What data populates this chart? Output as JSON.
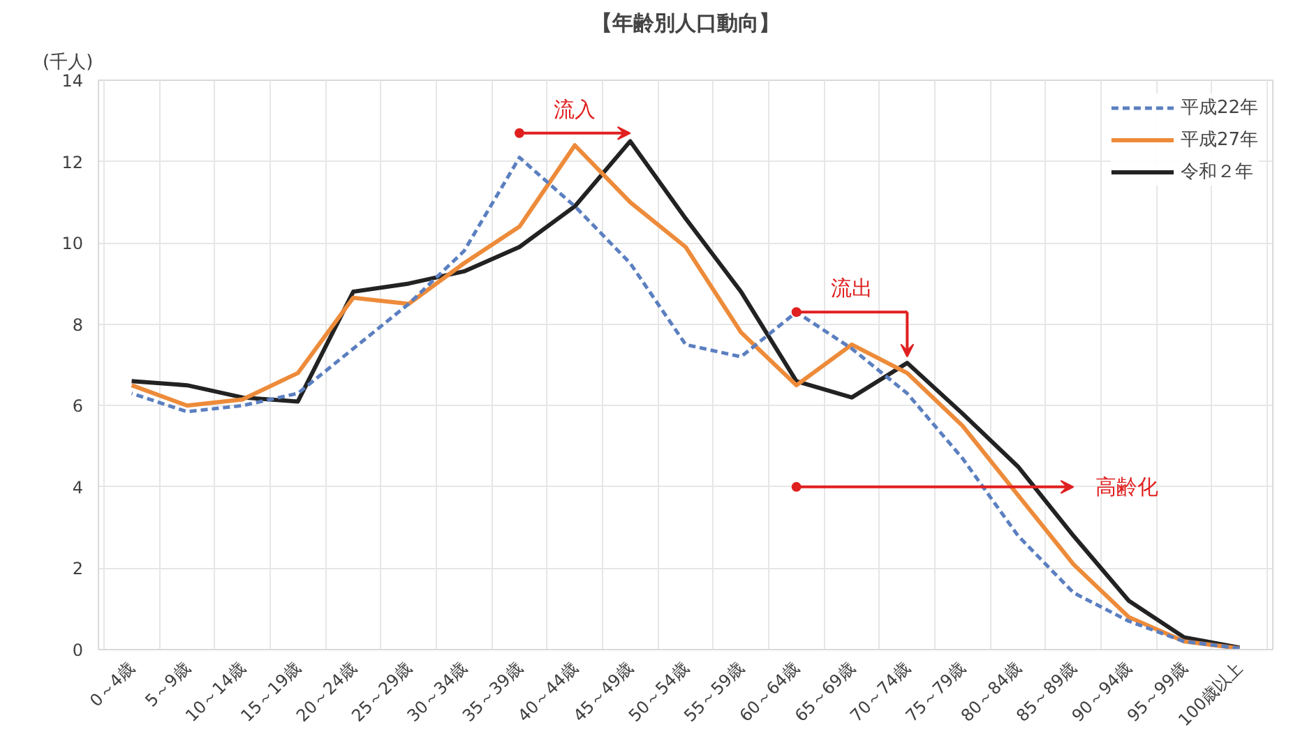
{
  "chart_data": {
    "type": "line",
    "title": "【年齢別人口動向】",
    "ylabel": "(千人)",
    "categories": [
      "0～4歳",
      "5～9歳",
      "10～14歳",
      "15～19歳",
      "20～24歳",
      "25～29歳",
      "30～34歳",
      "35～39歳",
      "40～44歳",
      "45～49歳",
      "50～54歳",
      "55～59歳",
      "60～64歳",
      "65～69歳",
      "70～74歳",
      "75～79歳",
      "80～84歳",
      "85～89歳",
      "90～94歳",
      "95～99歳",
      "100歳以上"
    ],
    "series": [
      {
        "name": "平成22年",
        "color": "#5b7fc0",
        "line_style": "dashed",
        "values": [
          6.3,
          5.85,
          6.0,
          6.3,
          7.4,
          8.5,
          9.8,
          12.1,
          10.9,
          9.5,
          7.5,
          7.2,
          8.3,
          7.4,
          6.3,
          4.7,
          2.8,
          1.4,
          0.7,
          0.2,
          0.03
        ]
      },
      {
        "name": "平成27年",
        "color": "#ed8b3a",
        "line_style": "solid",
        "values": [
          6.5,
          6.0,
          6.15,
          6.8,
          8.65,
          8.5,
          9.5,
          10.4,
          12.4,
          11.0,
          9.9,
          7.8,
          6.5,
          7.5,
          6.8,
          5.5,
          3.8,
          2.1,
          0.8,
          0.2,
          0.03
        ]
      },
      {
        "name": "令和２年",
        "color": "#222222",
        "line_style": "solid",
        "values": [
          6.6,
          6.5,
          6.2,
          6.1,
          8.8,
          9.0,
          9.3,
          9.9,
          10.9,
          12.5,
          10.6,
          8.8,
          6.6,
          6.2,
          7.05,
          5.8,
          4.5,
          2.8,
          1.2,
          0.3,
          0.05
        ]
      }
    ],
    "ylim": [
      0,
      14
    ],
    "yticks": [
      0,
      2,
      4,
      6,
      8,
      10,
      12,
      14
    ],
    "grid": true,
    "legend": "top right",
    "marker": "none",
    "annotations": [
      "流入",
      "流出",
      "高齢化"
    ]
  }
}
